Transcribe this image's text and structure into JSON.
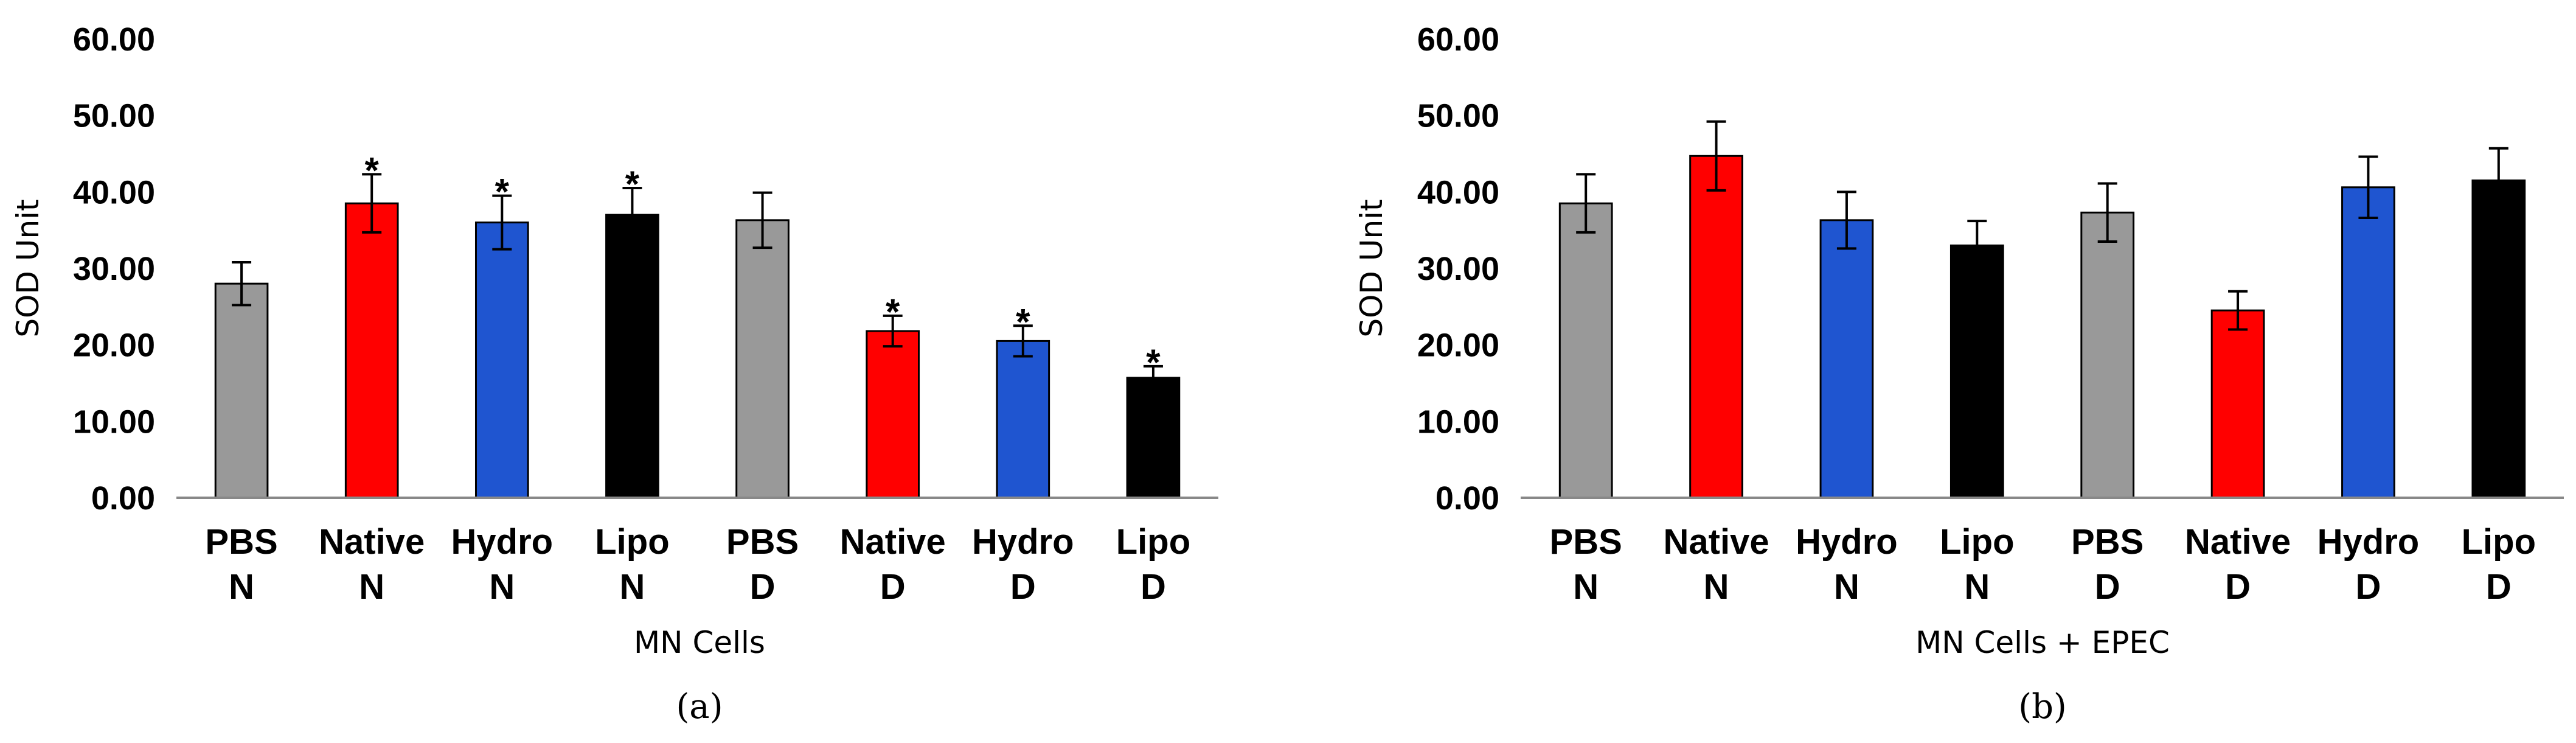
{
  "colors": {
    "grey": "#999999",
    "red": "#ff0000",
    "blue": "#1f55d0",
    "black": "#000000",
    "axis": "#888888",
    "error_bar": "#000000"
  },
  "chart_data": [
    {
      "type": "bar",
      "panel_caption": "(a)",
      "xlabel": "MN Cells",
      "ylabel": "SOD Unit",
      "ylim": [
        0,
        60
      ],
      "yticks": [
        "0.00",
        "10.00",
        "20.00",
        "30.00",
        "40.00",
        "50.00",
        "60.00"
      ],
      "grid": false,
      "categories": [
        {
          "line1": "PBS",
          "line2": "N"
        },
        {
          "line1": "Native",
          "line2": "N"
        },
        {
          "line1": "Hydro",
          "line2": "N"
        },
        {
          "line1": "Lipo",
          "line2": "N"
        },
        {
          "line1": "PBS",
          "line2": "D"
        },
        {
          "line1": "Native",
          "line2": "D"
        },
        {
          "line1": "Hydro",
          "line2": "D"
        },
        {
          "line1": "Lipo",
          "line2": "D"
        }
      ],
      "values": [
        28.0,
        38.5,
        36.0,
        37.0,
        36.3,
        21.8,
        20.5,
        15.7
      ],
      "errors": [
        2.8,
        3.8,
        3.5,
        3.5,
        3.6,
        2.0,
        2.0,
        1.5
      ],
      "bar_colors": [
        "#999999",
        "#ff0000",
        "#1f55d0",
        "#000000",
        "#999999",
        "#ff0000",
        "#1f55d0",
        "#000000"
      ],
      "significance": [
        "",
        "*",
        "*",
        "*",
        "",
        "*",
        "*",
        "*"
      ]
    },
    {
      "type": "bar",
      "panel_caption": "(b)",
      "xlabel": "MN Cells + EPEC",
      "ylabel": "SOD Unit",
      "ylim": [
        0,
        60
      ],
      "yticks": [
        "0.00",
        "10.00",
        "20.00",
        "30.00",
        "40.00",
        "50.00",
        "60.00"
      ],
      "grid": false,
      "categories": [
        {
          "line1": "PBS",
          "line2": "N"
        },
        {
          "line1": "Native",
          "line2": "N"
        },
        {
          "line1": "Hydro",
          "line2": "N"
        },
        {
          "line1": "Lipo",
          "line2": "N"
        },
        {
          "line1": "PBS",
          "line2": "D"
        },
        {
          "line1": "Native",
          "line2": "D"
        },
        {
          "line1": "Hydro",
          "line2": "D"
        },
        {
          "line1": "Lipo",
          "line2": "D"
        }
      ],
      "values": [
        38.5,
        44.7,
        36.3,
        33.0,
        37.3,
        24.5,
        40.6,
        41.5
      ],
      "errors": [
        3.8,
        4.5,
        3.7,
        3.2,
        3.8,
        2.5,
        4.0,
        4.2
      ],
      "bar_colors": [
        "#999999",
        "#ff0000",
        "#1f55d0",
        "#000000",
        "#999999",
        "#ff0000",
        "#1f55d0",
        "#000000"
      ],
      "significance": [
        "",
        "",
        "",
        "",
        "",
        "",
        "",
        ""
      ]
    }
  ]
}
